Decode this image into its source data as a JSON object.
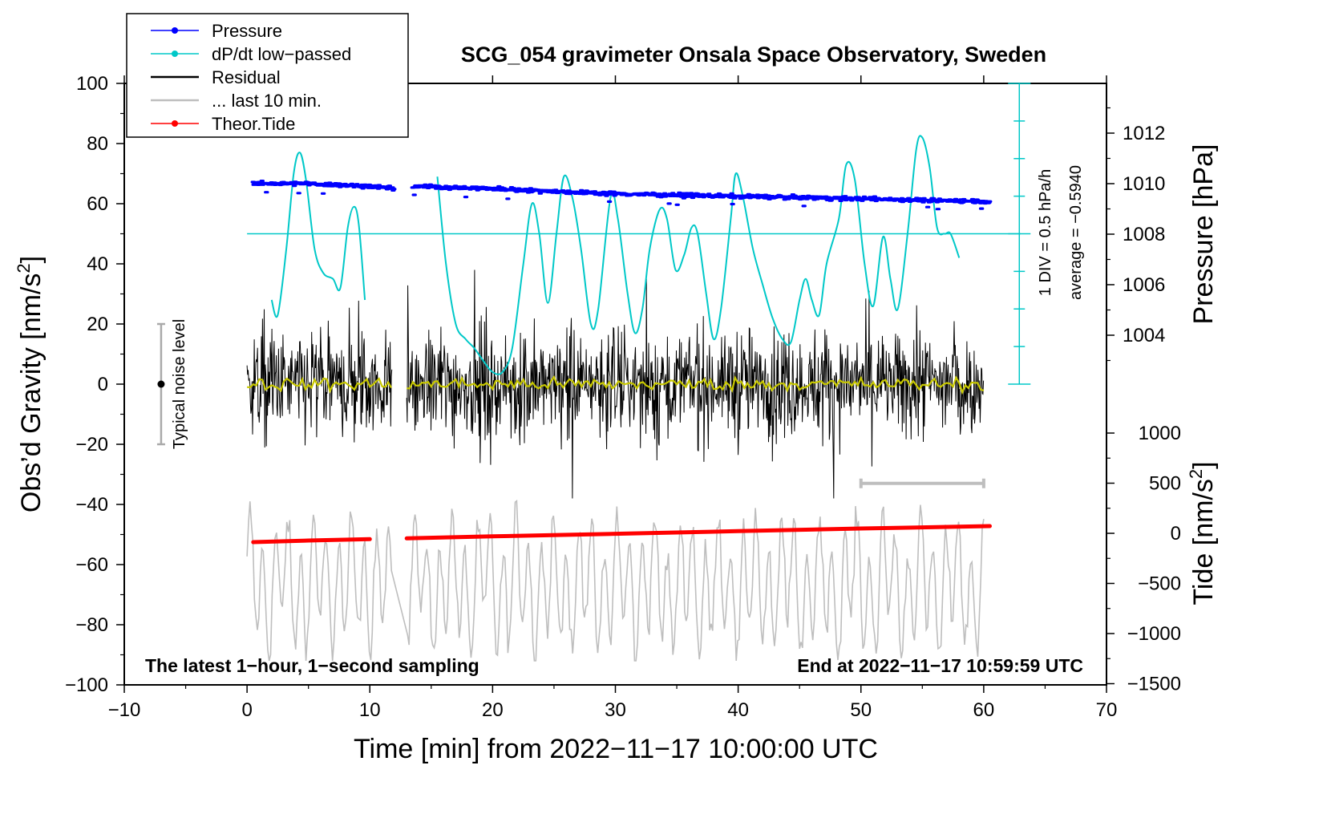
{
  "chart_data": {
    "type": "line",
    "title": "SCG_054 gravimeter Onsala Space Observatory, Sweden",
    "xlabel": "Time [min] from 2022−11−17 10:00:00 UTC",
    "ylabel_left": "Obs’d Gravity [nm/s",
    "ylabel_left_sup": "2",
    "ylabel_left_end": "]",
    "ylabel_right_pressure": "Pressure [hPa]",
    "ylabel_right_tide": "Tide [nm/s",
    "ylabel_right_tide_sup": "2",
    "ylabel_right_tide_end": "]",
    "xlim": [
      -10,
      70
    ],
    "ylim_left": [
      -100,
      100
    ],
    "pressure_lim": [
      1002,
      1014
    ],
    "tide_lim": [
      -1500,
      1500
    ],
    "xticks": [
      -10,
      0,
      10,
      20,
      30,
      40,
      50,
      60,
      70
    ],
    "xtick_labels": [
      "−10",
      "0",
      "10",
      "20",
      "30",
      "40",
      "50",
      "60",
      "70"
    ],
    "yticks_left": [
      -100,
      -80,
      -60,
      -40,
      -20,
      0,
      20,
      40,
      60,
      80,
      100
    ],
    "ytick_labels_left": [
      "−100",
      "−80",
      "−60",
      "−40",
      "−20",
      "0",
      "20",
      "40",
      "60",
      "80",
      "100"
    ],
    "pressure_ticks": [
      1004,
      1006,
      1008,
      1010,
      1012
    ],
    "pressure_tick_labels": [
      "1004",
      "1006",
      "1008",
      "1010",
      "1012"
    ],
    "tide_ticks": [
      -1500,
      -1000,
      -500,
      0,
      500,
      1000
    ],
    "tide_tick_labels": [
      "−1500",
      "−1000",
      "−500",
      "0",
      "500",
      "1000"
    ],
    "legend": [
      {
        "label": "Pressure",
        "color": "#0000ff",
        "marker": true
      },
      {
        "label": "dP/dt low−passed",
        "color": "#00c8c8",
        "marker": true
      },
      {
        "label": "Residual",
        "color": "#000000",
        "marker": false
      },
      {
        "label": "... last 10 min.",
        "color": "#bebebe",
        "marker": false
      },
      {
        "label": "Theor.Tide",
        "color": "#ff0000",
        "marker": true
      }
    ],
    "annotations": {
      "bottom_left": "The latest 1−hour, 1−second sampling",
      "bottom_right": "End at 2022−11−17 10:59:59 UTC",
      "noise_label": "Typical noise level",
      "div_label": "1 DIV = 0.5 hPa/h",
      "average_label": "average = −0.5940"
    },
    "noise_bar": {
      "x": -7,
      "center": 0,
      "low": -20,
      "high": 20
    },
    "dpdt_reference_level": 50,
    "data_gap": [
      11.8,
      13.0
    ],
    "series": [
      {
        "name": "dP/dt low−passed",
        "axis": "left",
        "color": "#00c8c8",
        "segments": [
          [
            [
              2,
              28
            ],
            [
              2.5,
              23
            ],
            [
              3.2,
              45
            ],
            [
              3.8,
              70
            ],
            [
              4.3,
              77
            ],
            [
              4.8,
              68
            ],
            [
              5.5,
              45
            ],
            [
              6.2,
              37
            ],
            [
              7,
              35
            ],
            [
              7.6,
              32
            ],
            [
              8.2,
              52
            ],
            [
              8.7,
              59
            ],
            [
              9.1,
              53
            ],
            [
              9.6,
              28
            ]
          ],
          [
            [
              15.5,
              69
            ],
            [
              16.2,
              40
            ],
            [
              17,
              20
            ],
            [
              17.8,
              15
            ],
            [
              18.5,
              12
            ],
            [
              19.2,
              8
            ],
            [
              20,
              4
            ],
            [
              20.8,
              4
            ],
            [
              21.6,
              12
            ],
            [
              22.5,
              40
            ],
            [
              23.2,
              60
            ],
            [
              23.8,
              50
            ],
            [
              24.5,
              27
            ],
            [
              25.2,
              50
            ],
            [
              25.8,
              69
            ],
            [
              26.5,
              62
            ],
            [
              27.2,
              45
            ],
            [
              28,
              20
            ],
            [
              28.6,
              25
            ],
            [
              29.6,
              62
            ],
            [
              30.2,
              55
            ],
            [
              31,
              30
            ],
            [
              31.6,
              17
            ],
            [
              32.2,
              25
            ],
            [
              32.8,
              45
            ],
            [
              33.6,
              58
            ],
            [
              34.2,
              55
            ],
            [
              34.9,
              38
            ],
            [
              35.6,
              43
            ],
            [
              36.2,
              52
            ],
            [
              36.7,
              50
            ],
            [
              37.4,
              30
            ],
            [
              38,
              15
            ],
            [
              38.6,
              25
            ],
            [
              39.4,
              55
            ],
            [
              39.8,
              70
            ],
            [
              40.4,
              62
            ],
            [
              41.2,
              45
            ],
            [
              42,
              33
            ],
            [
              42.8,
              22
            ],
            [
              43.6,
              15
            ],
            [
              44.3,
              14
            ],
            [
              45,
              28
            ],
            [
              45.5,
              35
            ],
            [
              46,
              28
            ],
            [
              46.6,
              23
            ],
            [
              47.2,
              40
            ],
            [
              48.2,
              55
            ],
            [
              48.8,
              73
            ],
            [
              49.5,
              68
            ],
            [
              50.3,
              40
            ],
            [
              51,
              26
            ],
            [
              51.8,
              49
            ],
            [
              52.4,
              35
            ],
            [
              53,
              25
            ],
            [
              53.8,
              50
            ],
            [
              54.5,
              78
            ],
            [
              55,
              82
            ],
            [
              55.6,
              72
            ],
            [
              56.2,
              52
            ],
            [
              56.8,
              50
            ],
            [
              57.3,
              50
            ],
            [
              58,
              42
            ]
          ]
        ]
      },
      {
        "name": "Pressure",
        "axis": "pressure",
        "color": "#0000ff",
        "segments": [
          [
            [
              0.5,
              1010.0
            ],
            [
              5,
              1010.0
            ],
            [
              10,
              1009.9
            ],
            [
              12.0,
              1009.8
            ]
          ],
          [
            [
              13.5,
              1009.9
            ],
            [
              20,
              1009.8
            ],
            [
              30,
              1009.6
            ],
            [
              40,
              1009.5
            ],
            [
              50,
              1009.4
            ],
            [
              60.5,
              1009.3
            ]
          ]
        ]
      },
      {
        "name": "Theor.Tide",
        "axis": "tide",
        "color": "#ff0000",
        "points": [
          [
            0.5,
            -88
          ],
          [
            5,
            -72
          ],
          [
            10,
            -58
          ],
          [
            12.0,
            -52
          ],
          [
            13.0,
            -50
          ],
          [
            20,
            -30
          ],
          [
            30,
            -5
          ],
          [
            40,
            22
          ],
          [
            50,
            48
          ],
          [
            60.5,
            72
          ]
        ]
      }
    ],
    "residual": {
      "color": "#000000",
      "amplitude_typical": 15,
      "amplitude_max": 38
    },
    "residual_smoothed": {
      "color": "#c8c800"
    },
    "last_10min": {
      "color": "#bebebe",
      "marker_range": [
        50,
        60
      ],
      "marker_level": -33
    }
  }
}
